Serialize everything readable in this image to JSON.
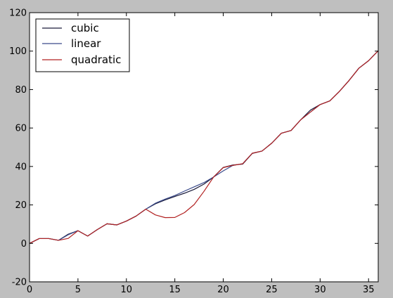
{
  "chart_data": {
    "type": "line",
    "title": "",
    "xlabel": "",
    "ylabel": "",
    "xlim": [
      0,
      36
    ],
    "ylim": [
      -20,
      120
    ],
    "xticks": [
      0,
      5,
      10,
      15,
      20,
      25,
      30,
      35
    ],
    "yticks": [
      -20,
      0,
      20,
      40,
      60,
      80,
      100,
      120
    ],
    "grid": false,
    "legend_position": "top-left",
    "series": [
      {
        "name": "cubic",
        "color": "#1a1a3a",
        "x": [
          0,
          1,
          2,
          3,
          4,
          5,
          6,
          7,
          8,
          9,
          10,
          11,
          12,
          13,
          14,
          15,
          16,
          17,
          18,
          19,
          20,
          21,
          22,
          23,
          24,
          25,
          26,
          27,
          28,
          29,
          30,
          31,
          32,
          33,
          34,
          35,
          36
        ],
        "y": [
          0,
          2.5,
          2.5,
          1.6,
          4.8,
          6.6,
          3.8,
          7.2,
          10.2,
          9.6,
          11.6,
          14.2,
          17.8,
          20.6,
          22.6,
          24.4,
          26.1,
          28.1,
          30.8,
          34.5,
          39.5,
          40.8,
          41.2,
          46.8,
          48.0,
          52.1,
          57.3,
          58.7,
          64.3,
          69.3,
          72.2,
          74.1,
          79.1,
          84.8,
          91.1,
          95.0,
          100.2
        ]
      },
      {
        "name": "linear",
        "color": "#3a4a8a",
        "x": [
          0,
          1,
          2,
          3,
          4,
          5,
          6,
          7,
          8,
          9,
          10,
          11,
          12,
          13,
          14,
          15,
          16,
          17,
          18,
          19,
          20,
          21,
          22,
          23,
          24,
          25,
          26,
          27,
          28,
          29,
          30,
          31,
          32,
          33,
          34,
          35,
          36
        ],
        "y": [
          0,
          2.5,
          2.5,
          1.6,
          4.5,
          6.6,
          3.8,
          7.2,
          10.2,
          9.6,
          11.6,
          14.2,
          17.8,
          20.9,
          23.0,
          24.9,
          27.2,
          29.4,
          31.6,
          34.5,
          37.7,
          40.6,
          41.4,
          46.9,
          48.0,
          52.1,
          57.3,
          58.7,
          64.3,
          68.3,
          72.2,
          74.1,
          79.1,
          84.8,
          91.1,
          95.0,
          100.2
        ]
      },
      {
        "name": "quadratic",
        "color": "#b22222",
        "x": [
          0,
          1,
          2,
          3,
          4,
          5,
          6,
          7,
          8,
          9,
          10,
          11,
          12,
          13,
          14,
          15,
          16,
          17,
          18,
          19,
          20,
          21,
          22,
          23,
          24,
          25,
          26,
          27,
          28,
          29,
          30,
          31,
          32,
          33,
          34,
          35,
          36
        ],
        "y": [
          0,
          2.5,
          2.5,
          1.6,
          2.6,
          6.6,
          3.8,
          7.2,
          10.2,
          9.6,
          11.6,
          14.2,
          17.8,
          14.8,
          13.4,
          13.5,
          16.0,
          20.2,
          27.0,
          34.5,
          39.4,
          40.6,
          41.4,
          46.9,
          48.0,
          52.1,
          57.3,
          58.7,
          64.3,
          68.3,
          72.2,
          74.1,
          79.1,
          84.8,
          91.1,
          95.0,
          100.2
        ]
      }
    ]
  }
}
